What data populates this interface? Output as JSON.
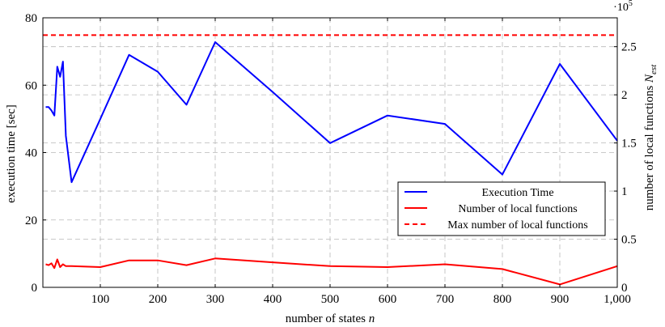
{
  "chart_data": {
    "type": "line",
    "xlabel": "number of states n",
    "ylabel": "execution time [sec]",
    "y2label": "number of local functions N_est",
    "y2_multiplier_label": "·10^5",
    "xlim": [
      0,
      1000
    ],
    "ylim": [
      0,
      80
    ],
    "y2lim": [
      0,
      2.8
    ],
    "x_ticks": [
      100,
      200,
      300,
      400,
      500,
      600,
      700,
      800,
      900,
      1000
    ],
    "x_tick_labels": [
      "100",
      "200",
      "300",
      "400",
      "500",
      "600",
      "700",
      "800",
      "900",
      "1,000"
    ],
    "y_ticks": [
      0,
      20,
      40,
      60,
      80
    ],
    "y2_ticks": [
      0,
      0.5,
      1,
      1.5,
      2,
      2.5
    ],
    "y2_tick_labels": [
      "0",
      "0.5",
      "1",
      "1.5",
      "2",
      "2.5"
    ],
    "grid": true,
    "legend_position": "center-right",
    "series": [
      {
        "name": "Execution Time",
        "axis": "left",
        "color": "#0000ff",
        "dash": false,
        "x": [
          5,
          10,
          15,
          20,
          25,
          30,
          35,
          40,
          50,
          100,
          150,
          200,
          250,
          300,
          400,
          500,
          600,
          700,
          800,
          900,
          1000
        ],
        "y": [
          53.5,
          53.5,
          52.5,
          51,
          65.5,
          62.5,
          67,
          45,
          31.2,
          50,
          69,
          64,
          54.2,
          72.8,
          58,
          42.8,
          51,
          48.5,
          33.5,
          66.3,
          43.5
        ]
      },
      {
        "name": "Number of local functions",
        "axis": "right",
        "color": "#ff0000",
        "dash": false,
        "x": [
          5,
          10,
          15,
          20,
          25,
          30,
          35,
          40,
          50,
          100,
          150,
          200,
          250,
          300,
          400,
          500,
          600,
          700,
          800,
          900,
          1000
        ],
        "y": [
          0.24,
          0.23,
          0.25,
          0.2,
          0.29,
          0.21,
          0.24,
          0.22,
          0.22,
          0.21,
          0.28,
          0.28,
          0.23,
          0.3,
          0.26,
          0.22,
          0.21,
          0.24,
          0.19,
          0.03,
          0.22
        ]
      },
      {
        "name": "Max number of local functions",
        "axis": "right",
        "color": "#ff0000",
        "dash": true,
        "x": [
          0,
          1000
        ],
        "y": [
          2.62,
          2.62
        ]
      }
    ]
  }
}
